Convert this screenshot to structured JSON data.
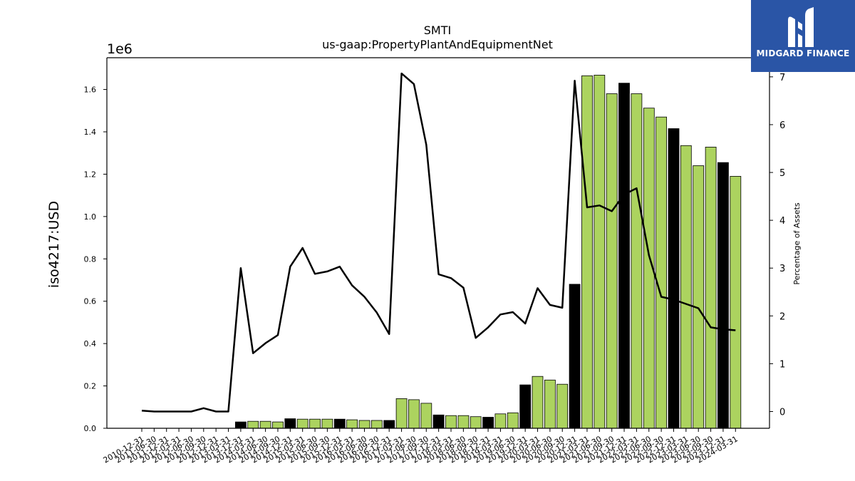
{
  "chart_data": {
    "type": "bar",
    "title": "SMTI",
    "subtitle": "us-gaap:PropertyPlantAndEquipmentNet",
    "ylabel": "iso4217:USD",
    "y2label": "Percentage of Assets",
    "y_offset_label": "1e6",
    "ylim": [
      0,
      1750000
    ],
    "y2lim": [
      -0.35,
      7.4
    ],
    "yticks": [
      0.0,
      0.2,
      0.4,
      0.6,
      0.8,
      1.0,
      1.2,
      1.4,
      1.6
    ],
    "ytick_labels": [
      "0.0",
      "0.2",
      "0.4",
      "0.6",
      "0.8",
      "1.0",
      "1.2",
      "1.4",
      "1.6"
    ],
    "y2ticks": [
      0,
      1,
      2,
      3,
      4,
      5,
      6,
      7
    ],
    "y2tick_labels": [
      "0",
      "1",
      "2",
      "3",
      "4",
      "5",
      "6",
      "7"
    ],
    "categories": [
      "2010-12-31",
      "2011-06-30",
      "2011-12-31",
      "2012-03-31",
      "2012-06-30",
      "2012-09-30",
      "2012-12-31",
      "2013-03-31",
      "2013-12-31",
      "2014-03-31",
      "2014-06-30",
      "2014-09-30",
      "2014-12-31",
      "2015-03-31",
      "2015-06-30",
      "2015-09-30",
      "2015-12-31",
      "2016-03-31",
      "2016-06-30",
      "2016-09-30",
      "2016-12-31",
      "2017-03-31",
      "2017-06-30",
      "2017-09-30",
      "2017-12-31",
      "2018-03-31",
      "2018-06-30",
      "2018-09-30",
      "2018-12-31",
      "2019-03-31",
      "2019-06-30",
      "2019-12-31",
      "2020-03-31",
      "2020-06-30",
      "2020-09-30",
      "2020-12-31",
      "2021-03-31",
      "2021-06-30",
      "2021-09-30",
      "2021-12-31",
      "2022-03-31",
      "2022-06-30",
      "2022-09-30",
      "2022-12-31",
      "2023-03-31",
      "2023-06-30",
      "2023-09-30",
      "2023-12-31",
      "2024-03-31"
    ],
    "series": [
      {
        "kind": "bar",
        "values": [
          null,
          null,
          null,
          null,
          null,
          null,
          null,
          null,
          30000,
          33000,
          33000,
          30000,
          45000,
          43000,
          43000,
          43000,
          43000,
          40000,
          37000,
          37000,
          37000,
          140000,
          135000,
          118000,
          63000,
          60000,
          60000,
          55000,
          52000,
          68000,
          73000,
          205000,
          245000,
          228000,
          208000,
          680000,
          1665000,
          1668000,
          1580000,
          1630000,
          1580000,
          1512000,
          1470000,
          1415000,
          1335000,
          1240000,
          1328000,
          1255000,
          1190000
        ],
        "colors": [
          "#000000",
          "#000000",
          "#000000",
          "#000000",
          "#000000",
          "#000000",
          "#000000",
          "#000000",
          "#000000",
          "#acd35f",
          "#acd35f",
          "#acd35f",
          "#000000",
          "#acd35f",
          "#acd35f",
          "#acd35f",
          "#000000",
          "#acd35f",
          "#acd35f",
          "#acd35f",
          "#000000",
          "#acd35f",
          "#acd35f",
          "#acd35f",
          "#000000",
          "#acd35f",
          "#acd35f",
          "#acd35f",
          "#000000",
          "#acd35f",
          "#acd35f",
          "#000000",
          "#acd35f",
          "#acd35f",
          "#acd35f",
          "#000000",
          "#acd35f",
          "#acd35f",
          "#acd35f",
          "#000000",
          "#acd35f",
          "#acd35f",
          "#acd35f",
          "#000000",
          "#acd35f",
          "#acd35f",
          "#acd35f",
          "#000000",
          "#acd35f"
        ]
      },
      {
        "kind": "line",
        "axis": "right",
        "color": "#000000",
        "values": [
          0.02,
          0.0,
          0.0,
          0.0,
          0.0,
          0.07,
          0.0,
          0.0,
          3.0,
          1.22,
          1.43,
          1.6,
          3.03,
          3.42,
          2.88,
          2.93,
          3.03,
          2.64,
          2.4,
          2.07,
          1.62,
          7.07,
          6.85,
          5.58,
          2.87,
          2.79,
          2.59,
          1.54,
          1.76,
          2.03,
          2.08,
          1.84,
          2.58,
          2.23,
          2.17,
          6.92,
          4.27,
          4.31,
          4.19,
          4.54,
          4.67,
          3.27,
          2.4,
          2.34,
          2.25,
          2.16,
          1.76,
          1.72,
          1.7
        ]
      }
    ]
  },
  "logo": {
    "text": "MIDGARD FINANCE",
    "icon": "midgard-m-icon",
    "background": "#2a55a6"
  }
}
